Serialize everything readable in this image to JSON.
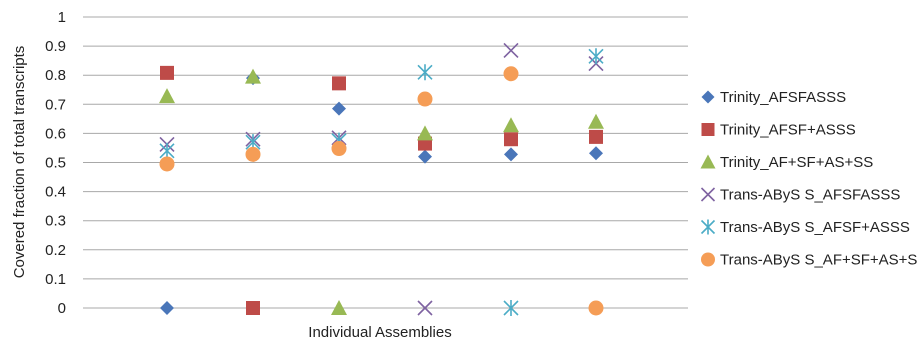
{
  "chart_data": {
    "type": "scatter",
    "title": "",
    "xlabel": "Individual Assemblies",
    "ylabel": "Covered fraction of total transcripts",
    "ylim": [
      0,
      1
    ],
    "yticks": [
      "0",
      "0.1",
      "0.2",
      "0.3",
      "0.4",
      "0.5",
      "0.6",
      "0.7",
      "0.8",
      "0.9",
      "1"
    ],
    "x": [
      1,
      2,
      3,
      4,
      5,
      6
    ],
    "grid": "horizontal",
    "legend_position": "right",
    "series": [
      {
        "name": "Trinity_AFSFASSS",
        "marker": "diamond",
        "color": "#4a76b9",
        "values": [
          0,
          0.79,
          0.685,
          0.52,
          0.528,
          0.532
        ]
      },
      {
        "name": "Trinity_AFSF+ASSS",
        "marker": "square",
        "color": "#be4b48",
        "values": [
          0.808,
          0,
          0.772,
          0.565,
          0.58,
          0.588
        ]
      },
      {
        "name": "Trinity_AF+SF+AS+SS",
        "marker": "triangle",
        "color": "#98b954",
        "values": [
          0.728,
          0.795,
          0,
          0.6,
          0.628,
          0.64
        ]
      },
      {
        "name": "Trans-AByS S_AFSFASSS",
        "marker": "x",
        "color": "#7e62a1",
        "values": [
          0.562,
          0.58,
          0.585,
          0,
          0.885,
          0.84
        ]
      },
      {
        "name": "Trans-AByS S_AFSF+ASSS",
        "marker": "star",
        "color": "#4bacc6",
        "values": [
          0.54,
          0.57,
          0.575,
          0.81,
          0,
          0.865
        ]
      },
      {
        "name": "Trans-AByS S_AF+SF+AS+SS",
        "marker": "circle",
        "color": "#f59d56",
        "values": [
          0.495,
          0.528,
          0.548,
          0.718,
          0.805,
          0
        ]
      }
    ]
  }
}
